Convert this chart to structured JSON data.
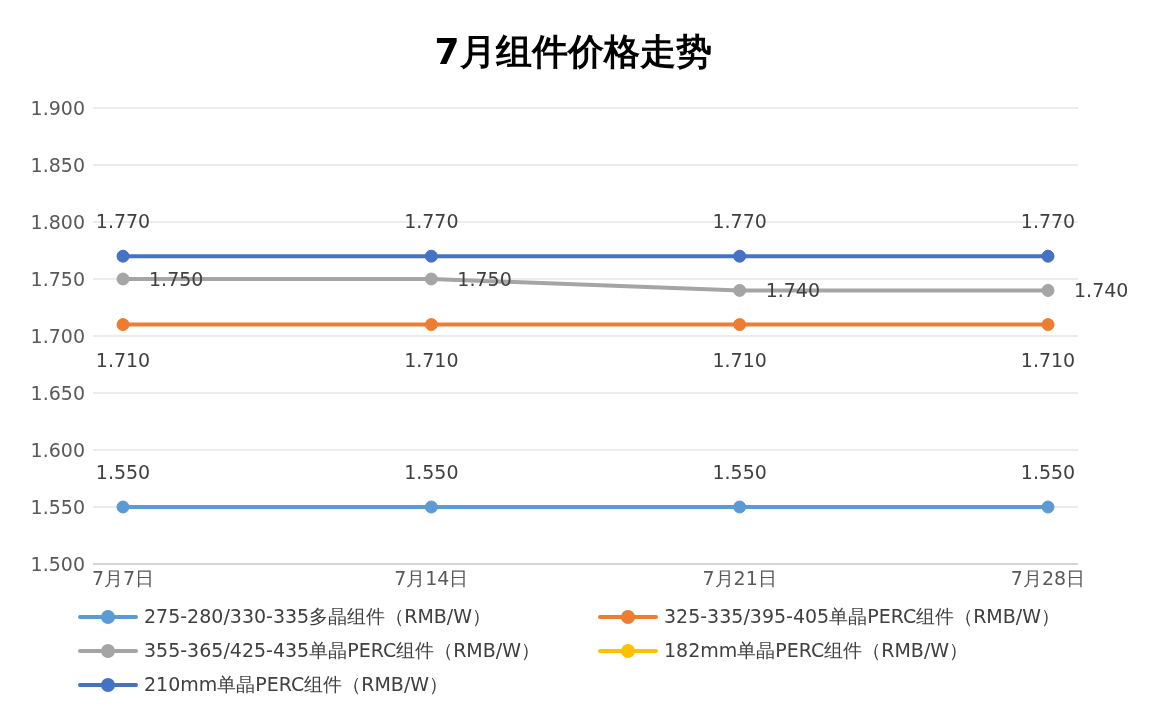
{
  "chart_data": {
    "type": "line",
    "title": "7月组件价格走势",
    "categories": [
      "7月7日",
      "7月14日",
      "7月21日",
      "7月28日"
    ],
    "series": [
      {
        "name": "275-280/330-335多晶组件（RMB/W）",
        "color": "#5b9bd5",
        "values": [
          1.55,
          1.55,
          1.55,
          1.55
        ],
        "value_labels": [
          "1.550",
          "1.550",
          "1.550",
          "1.550"
        ]
      },
      {
        "name": "325-335/395-405单晶PERC组件（RMB/W）",
        "color": "#ed7d31",
        "values": [
          1.71,
          1.71,
          1.71,
          1.71
        ],
        "value_labels": [
          "1.710",
          "1.710",
          "1.710",
          "1.710"
        ]
      },
      {
        "name": "355-365/425-435单晶PERC组件（RMB/W）",
        "color": "#a5a5a5",
        "values": [
          1.75,
          1.75,
          1.74,
          1.74
        ],
        "value_labels": [
          "1.750",
          "1.750",
          "1.740",
          "1.740"
        ]
      },
      {
        "name": "182mm单晶PERC组件（RMB/W）",
        "color": "#ffc000",
        "values": [
          null,
          null,
          null,
          null
        ]
      },
      {
        "name": "210mm单晶PERC组件（RMB/W）",
        "color": "#4472c4",
        "values": [
          1.77,
          1.77,
          1.77,
          1.77
        ],
        "value_labels": [
          "1.770",
          "1.770",
          "1.770",
          "1.770"
        ]
      }
    ],
    "ylim": [
      1.5,
      1.9
    ],
    "yticks": [
      {
        "value": 1.5,
        "label": "1.500"
      },
      {
        "value": 1.55,
        "label": "1.550"
      },
      {
        "value": 1.6,
        "label": "1.600"
      },
      {
        "value": 1.65,
        "label": "1.650"
      },
      {
        "value": 1.7,
        "label": "1.700"
      },
      {
        "value": 1.75,
        "label": "1.750"
      },
      {
        "value": 1.8,
        "label": "1.800"
      },
      {
        "value": 1.85,
        "label": "1.850"
      },
      {
        "value": 1.9,
        "label": "1.900"
      }
    ],
    "grid": "y",
    "legend": "bottom",
    "marker": "circle",
    "line_style": "solid"
  }
}
